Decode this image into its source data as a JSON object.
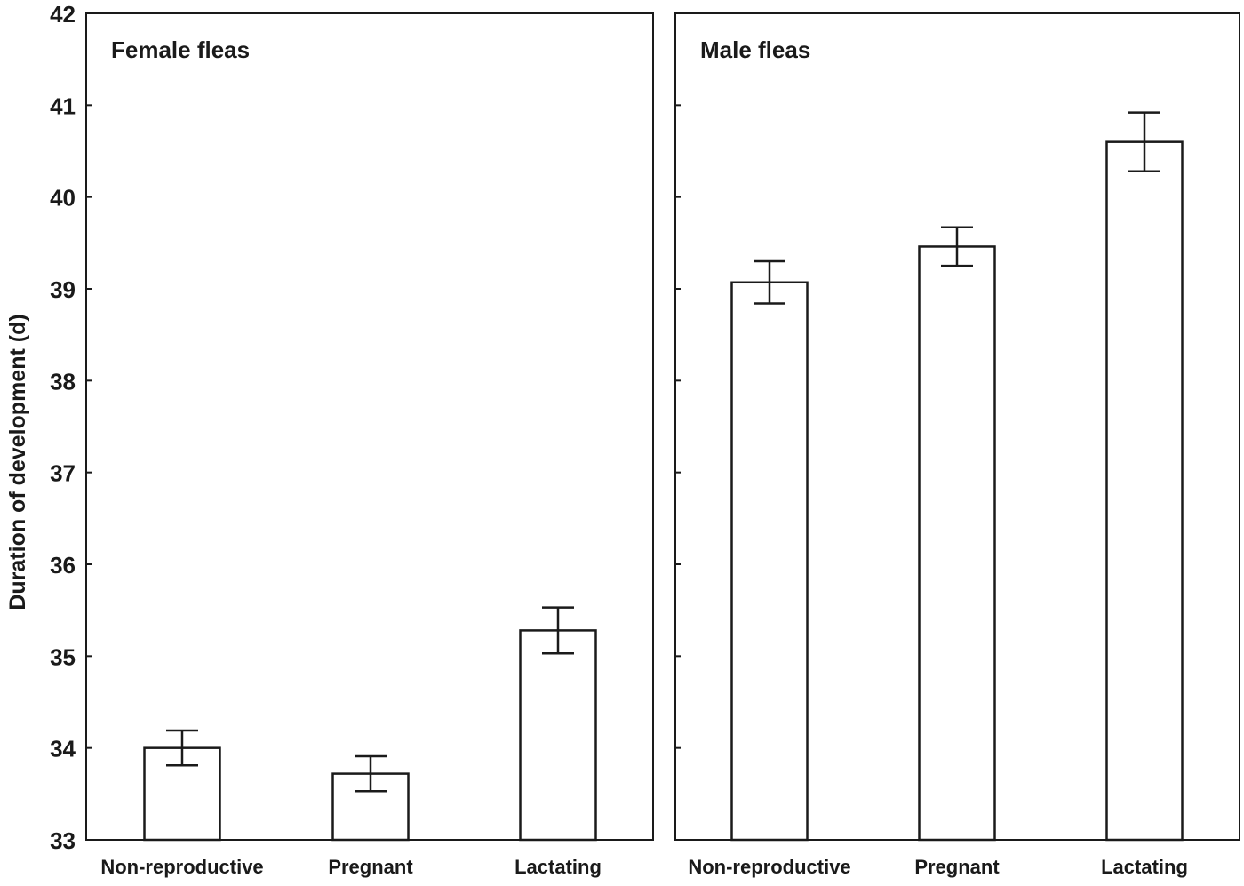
{
  "chart_data": [
    {
      "type": "bar",
      "title": "Female fleas",
      "categories": [
        "Non-reproductive",
        "Pregnant",
        "Lactating"
      ],
      "values": [
        34.0,
        33.72,
        35.28
      ],
      "errors": [
        0.19,
        0.19,
        0.25
      ],
      "ylabel": "Duration of development (d)",
      "ylim": [
        33,
        42
      ],
      "yticks": [
        "33",
        "34",
        "35",
        "36",
        "37",
        "38",
        "39",
        "40",
        "41",
        "42"
      ],
      "grid": false
    },
    {
      "type": "bar",
      "title": "Male fleas",
      "categories": [
        "Non-reproductive",
        "Pregnant",
        "Lactating"
      ],
      "values": [
        39.07,
        39.46,
        40.6
      ],
      "errors": [
        0.23,
        0.21,
        0.32
      ],
      "ylim": [
        33,
        42
      ],
      "grid": false
    }
  ],
  "colors": {
    "bar_fill": "#ffffff",
    "stroke": "#1a1a1a"
  }
}
